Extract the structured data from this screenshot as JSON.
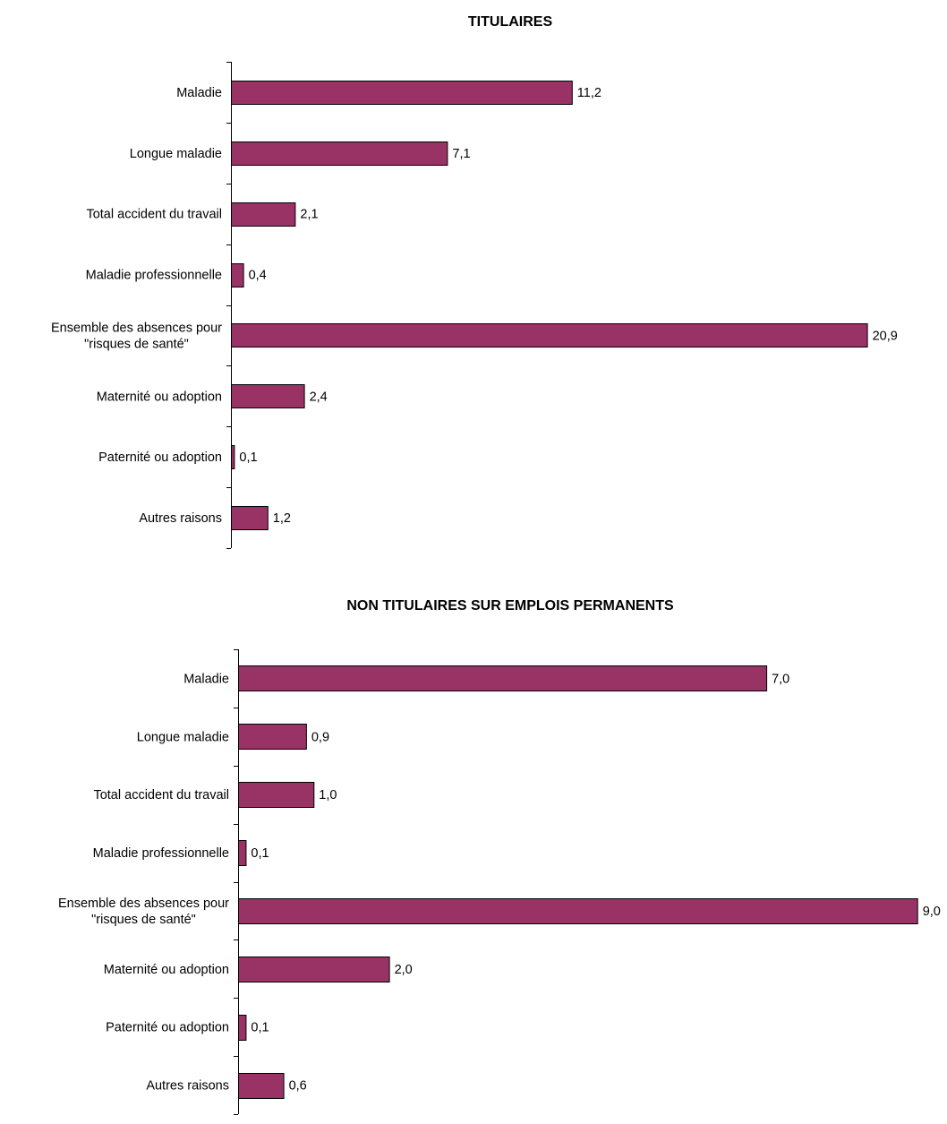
{
  "chart_data": [
    {
      "type": "bar",
      "orientation": "horizontal",
      "title": "TITULAIRES",
      "xlabel": "",
      "ylabel": "",
      "grid": false,
      "legend": "none",
      "bar_color": "#993366",
      "categories": [
        [
          "Maladie"
        ],
        [
          "Longue maladie"
        ],
        [
          "Total accident du travail"
        ],
        [
          "Maladie professionnelle"
        ],
        [
          "Ensemble des absences pour",
          "\"risques de santé\""
        ],
        [
          "Maternité ou adoption"
        ],
        [
          "Paternité ou adoption"
        ],
        [
          "Autres raisons"
        ]
      ],
      "values": [
        11.2,
        7.1,
        2.1,
        0.4,
        20.9,
        2.4,
        0.1,
        1.2
      ],
      "value_labels": [
        "11,2",
        "7,1",
        "2,1",
        "0,4",
        "20,9",
        "2,4",
        "0,1",
        "1,2"
      ]
    },
    {
      "type": "bar",
      "orientation": "horizontal",
      "title": "NON TITULAIRES SUR EMPLOIS PERMANENTS",
      "xlabel": "",
      "ylabel": "",
      "grid": false,
      "legend": "none",
      "bar_color": "#993366",
      "categories": [
        [
          "Maladie"
        ],
        [
          "Longue maladie"
        ],
        [
          "Total accident du travail"
        ],
        [
          "Maladie professionnelle"
        ],
        [
          "Ensemble des absences pour",
          "\"risques de santé\""
        ],
        [
          "Maternité ou adoption"
        ],
        [
          "Paternité ou adoption"
        ],
        [
          "Autres raisons"
        ]
      ],
      "values": [
        7.0,
        0.9,
        1.0,
        0.1,
        9.0,
        2.0,
        0.1,
        0.6
      ],
      "value_labels": [
        "7,0",
        "0,9",
        "1,0",
        "0,1",
        "9,0",
        "2,0",
        "0,1",
        "0,6"
      ]
    }
  ]
}
